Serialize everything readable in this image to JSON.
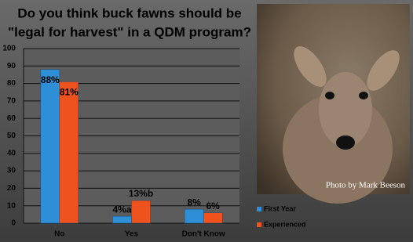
{
  "chart_data": {
    "type": "bar",
    "title": [
      "Do you think buck fawns should be",
      "\"legal for harvest\" in a QDM program?"
    ],
    "categories": [
      "No",
      "Yes",
      "Don't Know"
    ],
    "series": [
      {
        "name": "First Year",
        "color": "#2e8fd6",
        "values": [
          88,
          4,
          8
        ],
        "value_labels": [
          "88%",
          "4%a",
          "8%"
        ]
      },
      {
        "name": "Experienced",
        "color": "#f0521e",
        "values": [
          81,
          13,
          6
        ],
        "value_labels": [
          "81%",
          "13%b",
          "6%"
        ]
      }
    ],
    "ylim": [
      0,
      100
    ],
    "yticks": [
      0,
      10,
      20,
      30,
      40,
      50,
      60,
      70,
      80,
      90,
      100
    ],
    "grid": true,
    "legend": "lower right",
    "photo_credit": "Photo by Mark Beeson"
  }
}
